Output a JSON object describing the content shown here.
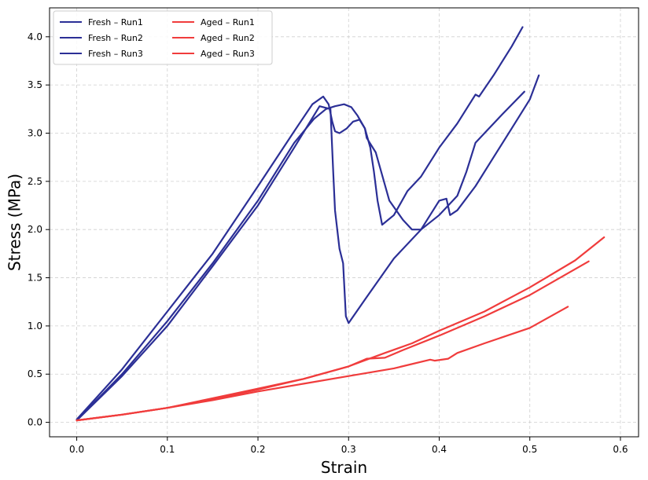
{
  "chart_data": {
    "type": "line",
    "title": "",
    "xlabel": "Strain",
    "ylabel": "Stress (MPa)",
    "xlim": [
      -0.03,
      0.62
    ],
    "ylim": [
      -0.15,
      4.3
    ],
    "xticks": [
      0.0,
      0.1,
      0.2,
      0.3,
      0.4,
      0.5,
      0.6
    ],
    "xtick_labels": [
      "0.0",
      "0.1",
      "0.2",
      "0.3",
      "0.4",
      "0.5",
      "0.6"
    ],
    "yticks": [
      0.0,
      0.5,
      1.0,
      1.5,
      2.0,
      2.5,
      3.0,
      3.5,
      4.0
    ],
    "ytick_labels": [
      "0.0",
      "0.5",
      "1.0",
      "1.5",
      "2.0",
      "2.5",
      "3.0",
      "3.5",
      "4.0"
    ],
    "grid": true,
    "legend_position": "top-left",
    "series": [
      {
        "name": "Fresh – Run1",
        "color": "#2b2f96",
        "x": [
          0.0,
          0.05,
          0.1,
          0.15,
          0.2,
          0.24,
          0.262,
          0.275,
          0.285,
          0.295,
          0.303,
          0.31,
          0.318,
          0.324,
          0.328,
          0.332,
          0.337,
          0.35,
          0.365,
          0.38,
          0.4,
          0.42,
          0.44,
          0.444,
          0.46,
          0.48,
          0.492
        ],
        "y": [
          0.02,
          0.5,
          1.05,
          1.65,
          2.3,
          2.9,
          3.15,
          3.25,
          3.28,
          3.3,
          3.27,
          3.18,
          3.05,
          2.85,
          2.6,
          2.3,
          2.05,
          2.15,
          2.4,
          2.55,
          2.85,
          3.1,
          3.4,
          3.38,
          3.6,
          3.9,
          4.1
        ]
      },
      {
        "name": "Fresh – Run2",
        "color": "#2b2f96",
        "x": [
          0.0,
          0.05,
          0.1,
          0.15,
          0.2,
          0.24,
          0.26,
          0.272,
          0.278,
          0.282,
          0.285,
          0.29,
          0.298,
          0.305,
          0.312,
          0.318,
          0.32,
          0.33,
          0.345,
          0.36,
          0.37,
          0.38,
          0.4,
          0.42,
          0.43,
          0.44,
          0.45,
          0.47,
          0.494
        ],
        "y": [
          0.03,
          0.55,
          1.15,
          1.75,
          2.45,
          3.02,
          3.3,
          3.38,
          3.3,
          3.12,
          3.02,
          3.0,
          3.05,
          3.12,
          3.14,
          3.05,
          2.95,
          2.8,
          2.3,
          2.1,
          2.0,
          2.0,
          2.15,
          2.35,
          2.6,
          2.9,
          3.0,
          3.2,
          3.43
        ]
      },
      {
        "name": "Fresh – Run3",
        "color": "#2b2f96",
        "x": [
          0.0,
          0.05,
          0.1,
          0.15,
          0.2,
          0.24,
          0.268,
          0.28,
          0.283,
          0.285,
          0.29,
          0.294,
          0.297,
          0.3,
          0.32,
          0.35,
          0.38,
          0.4,
          0.408,
          0.412,
          0.42,
          0.44,
          0.46,
          0.48,
          0.5,
          0.51
        ],
        "y": [
          0.02,
          0.48,
          1.0,
          1.62,
          2.25,
          2.85,
          3.28,
          3.25,
          2.6,
          2.2,
          1.8,
          1.65,
          1.1,
          1.03,
          1.3,
          1.7,
          2.0,
          2.3,
          2.32,
          2.15,
          2.2,
          2.45,
          2.75,
          3.05,
          3.35,
          3.6
        ]
      },
      {
        "name": "Aged – Run1",
        "color": "#f03c3c",
        "x": [
          0.0,
          0.05,
          0.1,
          0.15,
          0.2,
          0.25,
          0.3,
          0.32,
          0.34,
          0.37,
          0.4,
          0.45,
          0.5,
          0.55,
          0.582
        ],
        "y": [
          0.02,
          0.08,
          0.15,
          0.25,
          0.35,
          0.45,
          0.58,
          0.65,
          0.72,
          0.82,
          0.95,
          1.15,
          1.4,
          1.68,
          1.92
        ]
      },
      {
        "name": "Aged – Run2",
        "color": "#f03c3c",
        "x": [
          0.0,
          0.05,
          0.1,
          0.15,
          0.2,
          0.25,
          0.3,
          0.315,
          0.32,
          0.34,
          0.36,
          0.4,
          0.45,
          0.5,
          0.565
        ],
        "y": [
          0.02,
          0.08,
          0.15,
          0.24,
          0.34,
          0.45,
          0.58,
          0.64,
          0.66,
          0.67,
          0.75,
          0.9,
          1.1,
          1.32,
          1.67
        ]
      },
      {
        "name": "Aged – Run3",
        "color": "#f03c3c",
        "x": [
          0.0,
          0.05,
          0.1,
          0.15,
          0.2,
          0.25,
          0.3,
          0.35,
          0.39,
          0.395,
          0.41,
          0.42,
          0.45,
          0.5,
          0.542
        ],
        "y": [
          0.02,
          0.08,
          0.15,
          0.23,
          0.32,
          0.4,
          0.48,
          0.56,
          0.65,
          0.64,
          0.66,
          0.72,
          0.82,
          0.98,
          1.2
        ]
      }
    ]
  }
}
